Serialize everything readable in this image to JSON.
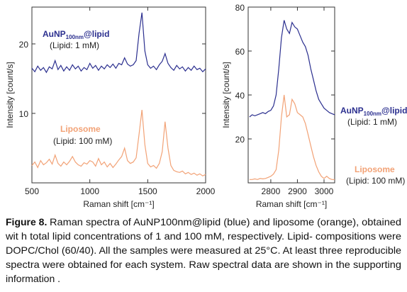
{
  "chart_data": [
    {
      "type": "line",
      "ylabel": "Intensity [count/s]",
      "xlabel": "Raman shift [cm⁻¹]",
      "xlim": [
        500,
        2000
      ],
      "xticks": [
        500,
        1000,
        1500,
        2000
      ],
      "ylim": [
        0,
        25.3
      ],
      "yticks": [
        10,
        20
      ],
      "x": [
        500,
        525,
        550,
        575,
        600,
        625,
        650,
        675,
        700,
        725,
        750,
        775,
        800,
        825,
        850,
        875,
        900,
        925,
        950,
        975,
        1000,
        1025,
        1050,
        1075,
        1100,
        1125,
        1150,
        1175,
        1200,
        1225,
        1250,
        1275,
        1300,
        1325,
        1350,
        1375,
        1400,
        1425,
        1450,
        1475,
        1500,
        1525,
        1550,
        1575,
        1600,
        1625,
        1650,
        1675,
        1700,
        1725,
        1750,
        1775,
        1800,
        1825,
        1850,
        1875,
        1900,
        1925,
        1950,
        1975,
        2000
      ],
      "series": [
        {
          "name_parts": [
            "AuNP",
            "100nm",
            "@lipid"
          ],
          "note": "(Lipid: 1 mM)",
          "color": "#2b2f8f",
          "values": [
            16.5,
            16.0,
            16.8,
            16.2,
            16.6,
            15.9,
            16.7,
            16.4,
            17.6,
            16.3,
            16.9,
            16.1,
            16.7,
            16.2,
            17.0,
            16.4,
            16.8,
            16.1,
            16.6,
            16.3,
            17.2,
            16.5,
            16.9,
            16.2,
            16.8,
            16.4,
            17.0,
            16.6,
            17.1,
            16.5,
            17.2,
            17.0,
            18.0,
            17.1,
            16.8,
            17.0,
            17.6,
            21.5,
            24.5,
            19.0,
            17.0,
            16.5,
            16.8,
            16.3,
            17.0,
            17.5,
            18.6,
            17.2,
            16.6,
            16.2,
            16.9,
            16.4,
            16.7,
            16.1,
            16.6,
            16.2,
            16.8,
            16.3,
            16.5,
            16.0,
            16.4
          ]
        },
        {
          "name_parts": [
            "Liposome"
          ],
          "note": "(Lipid: 100 mM)",
          "color": "#f2a276",
          "values": [
            2.5,
            3.0,
            2.2,
            3.2,
            2.6,
            2.9,
            3.4,
            2.7,
            4.0,
            2.8,
            2.4,
            3.0,
            2.6,
            3.1,
            3.8,
            3.0,
            2.6,
            2.4,
            2.9,
            2.7,
            3.2,
            3.0,
            2.4,
            3.5,
            2.6,
            3.0,
            2.3,
            2.8,
            2.2,
            2.7,
            3.3,
            3.8,
            5.0,
            3.2,
            2.8,
            3.0,
            3.6,
            7.0,
            10.5,
            5.5,
            2.8,
            2.3,
            2.5,
            2.1,
            2.8,
            4.5,
            8.8,
            5.0,
            2.5,
            1.8,
            1.6,
            1.5,
            1.7,
            1.3,
            1.5,
            1.2,
            1.4,
            1.1,
            1.3,
            1.0,
            1.2
          ]
        }
      ]
    },
    {
      "type": "line",
      "ylabel": "Intensity [count/s]",
      "xlabel": "Raman shift [cm⁻¹]",
      "xlim": [
        2715,
        3040
      ],
      "xticks": [
        2800,
        2900,
        3000
      ],
      "ylim": [
        0,
        80
      ],
      "yticks": [
        20,
        40,
        60,
        80
      ],
      "x": [
        2720,
        2730,
        2740,
        2750,
        2760,
        2770,
        2780,
        2790,
        2800,
        2810,
        2820,
        2830,
        2840,
        2850,
        2860,
        2870,
        2880,
        2890,
        2900,
        2910,
        2920,
        2930,
        2940,
        2950,
        2960,
        2970,
        2980,
        2990,
        3000,
        3010,
        3020,
        3030,
        3040
      ],
      "series": [
        {
          "name_parts": [
            "AuNP",
            "100nm",
            "@lipid"
          ],
          "note": "(Lipid: 1 mM)",
          "color": "#2b2f8f",
          "values": [
            30,
            31,
            30.5,
            31,
            31.5,
            32,
            31.5,
            32.5,
            33,
            35,
            40,
            52,
            66,
            74,
            70,
            68,
            73,
            71,
            70,
            67,
            64,
            62,
            58,
            52,
            47,
            42,
            38,
            36,
            34,
            33,
            32,
            31.5,
            31
          ]
        },
        {
          "name_parts": [
            "Liposome"
          ],
          "note": "(Lipid: 100 mM)",
          "color": "#f2a276",
          "values": [
            1.5,
            1.5,
            1.8,
            1.5,
            2,
            1.8,
            2,
            2.5,
            3,
            4,
            6,
            15,
            30,
            40,
            30,
            31,
            38,
            36,
            32,
            31,
            30,
            27,
            22,
            17,
            12,
            8,
            5,
            3,
            2,
            3,
            2,
            1.5,
            1.5
          ]
        }
      ]
    }
  ],
  "caption": {
    "label": "Figure 8.",
    "lines": [
      "Raman spectra of AuNP100nm@lipid (blue) and liposome (orange), obtained",
      "wit h total lipid concentrations of 1 and 100 mM, respectively. Lipid- compositions were",
      "DOPC/Chol (60/40). All the samples were measured at 25°C. At least three reproducible",
      "spectra were obtained for each system. Raw spectral data are shown in the supporting",
      "information ."
    ]
  }
}
